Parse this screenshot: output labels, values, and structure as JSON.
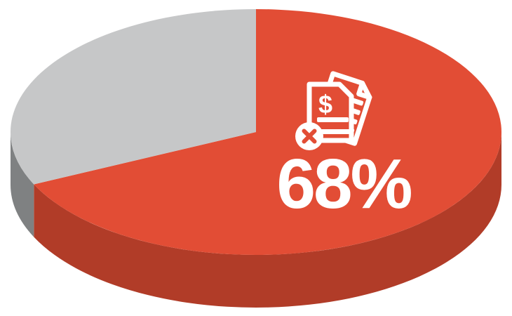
{
  "page": {
    "background": "#FFFFFF"
  },
  "chart_data": {
    "type": "pie",
    "style": "3d",
    "title": "",
    "direction": "clockwise",
    "start_angle_deg": 90,
    "legend": "none",
    "data_label": "68%",
    "data_label_color": "#FFFFFF",
    "segments": [
      {
        "name": "highlighted-share",
        "value": 68,
        "label": "68%",
        "color_top": "#E24D35",
        "color_side": "#B13C28"
      },
      {
        "name": "remainder-share",
        "value": 32,
        "label": "",
        "color_top": "#C6C7C8",
        "color_side": "#7F8182"
      }
    ]
  },
  "icon": {
    "name": "rejected-billing-documents-icon",
    "dollar_glyph": "$",
    "badge": "x-circle",
    "stroke_color": "#FFFFFF"
  }
}
